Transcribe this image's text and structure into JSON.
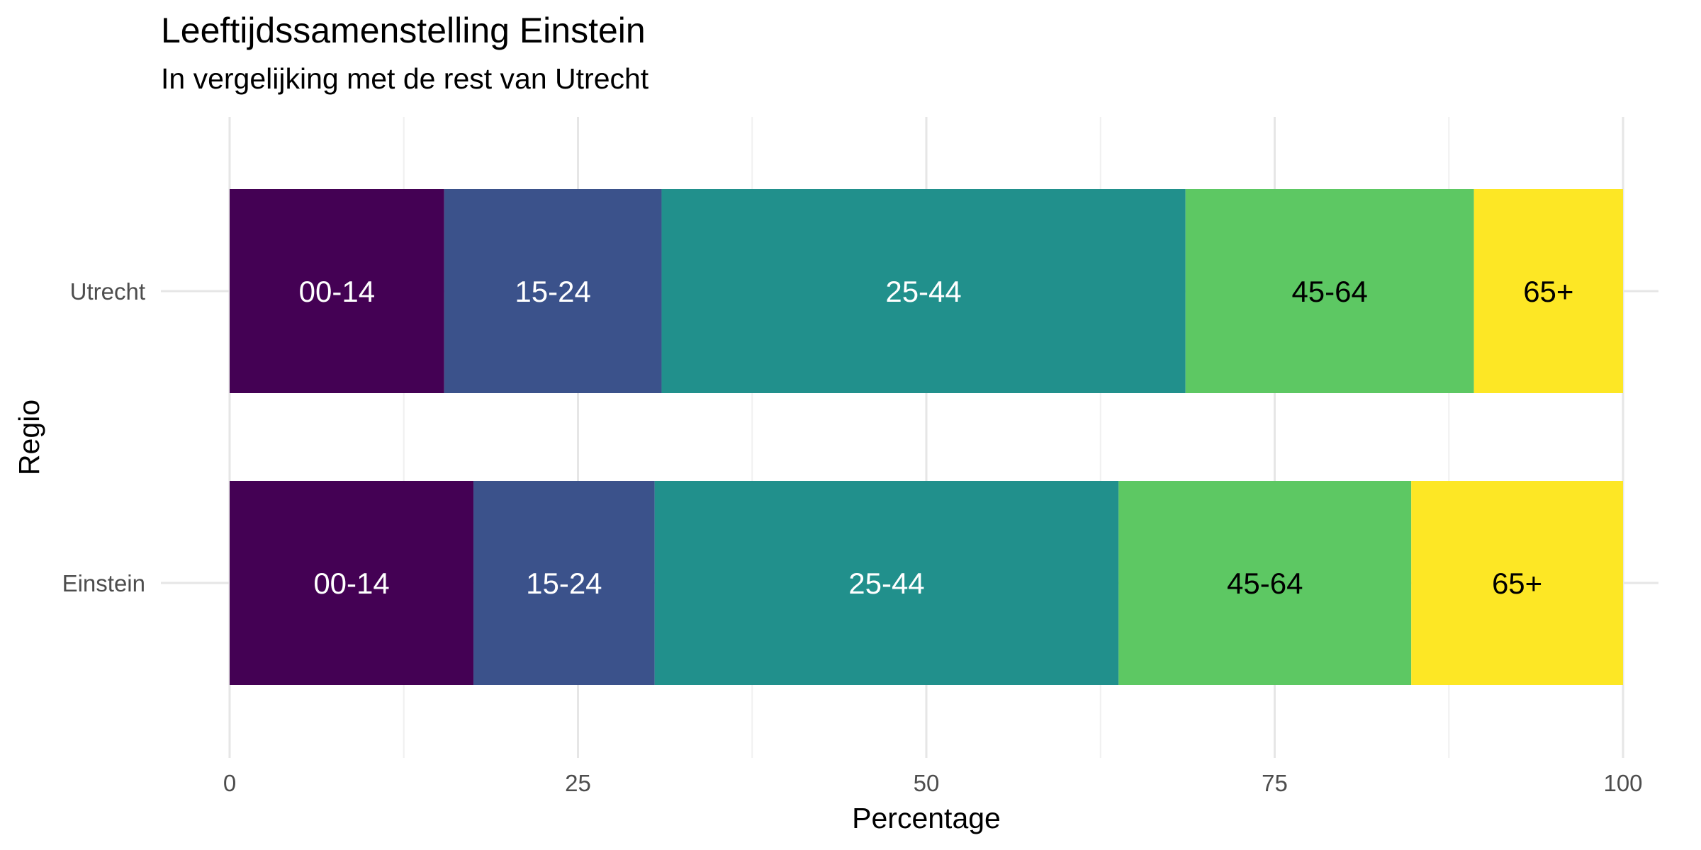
{
  "chart_data": {
    "type": "bar",
    "orientation": "horizontal",
    "stacked": true,
    "title": "Leeftijdssamenstelling Einstein",
    "subtitle": "In vergelijking met de rest van Utrecht",
    "xlabel": "Percentage",
    "ylabel": "Regio",
    "xlim": [
      0,
      100
    ],
    "x_ticks": [
      0,
      25,
      50,
      75,
      100
    ],
    "grid": true,
    "legend": "none",
    "categories": [
      "Utrecht",
      "Einstein"
    ],
    "series": [
      {
        "name": "00-14",
        "values": [
          15.4,
          17.5
        ],
        "color": "#440154",
        "label_color": "#ffffff"
      },
      {
        "name": "15-24",
        "values": [
          15.6,
          13.0
        ],
        "color": "#3B528B",
        "label_color": "#ffffff"
      },
      {
        "name": "25-44",
        "values": [
          37.6,
          33.3
        ],
        "color": "#21908C",
        "label_color": "#ffffff"
      },
      {
        "name": "45-64",
        "values": [
          20.7,
          21.0
        ],
        "color": "#5DC863",
        "label_color": "#000000"
      },
      {
        "name": "65+",
        "values": [
          10.7,
          15.2
        ],
        "color": "#FDE725",
        "label_color": "#000000"
      }
    ]
  }
}
